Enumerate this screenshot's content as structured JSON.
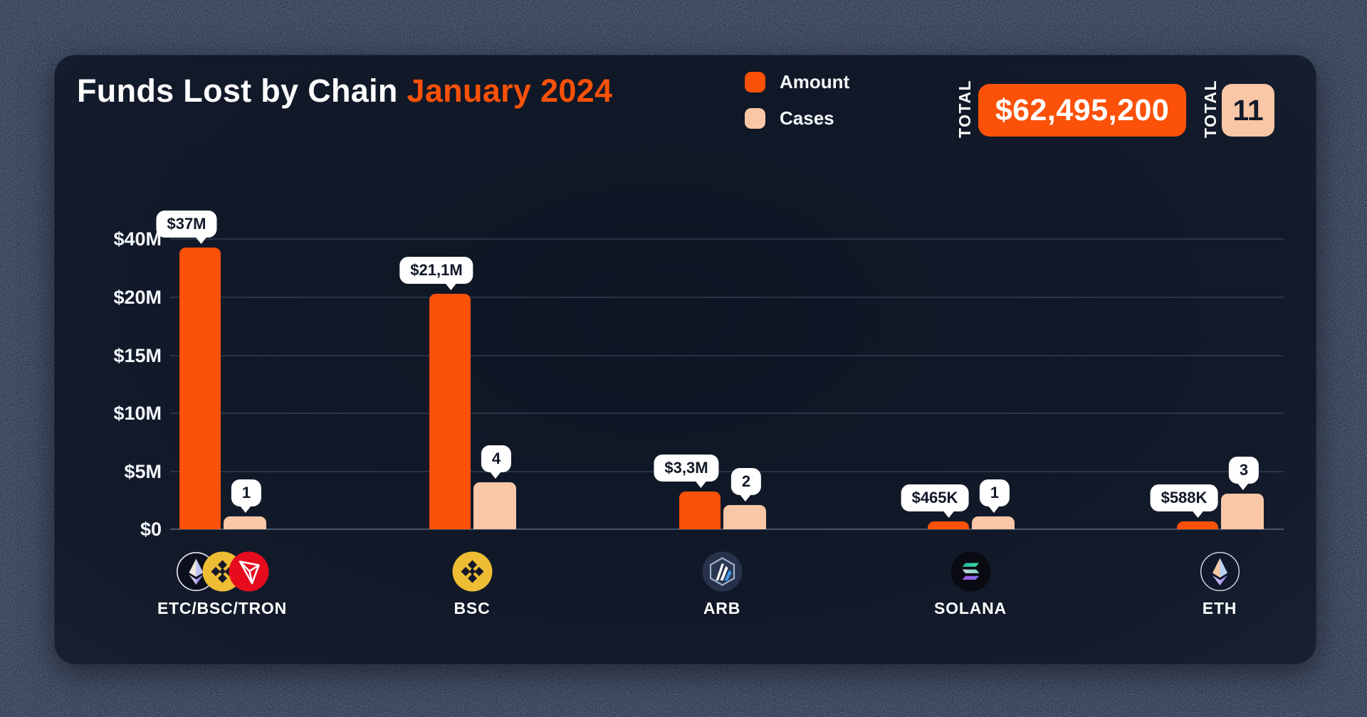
{
  "chart_data": {
    "type": "bar",
    "title": "Funds Lost by Chain",
    "title_highlight": "January 2024",
    "legend": [
      {
        "label": "Amount",
        "color": "#fb5108"
      },
      {
        "label": "Cases",
        "color": "#f9c7a6"
      }
    ],
    "totals": [
      {
        "label": "TOTAL",
        "value": "$62,495,200",
        "kind": "amount"
      },
      {
        "label": "TOTAL",
        "value": "11",
        "kind": "cases"
      }
    ],
    "y_axis": {
      "ticks": [
        "$40M",
        "$20M",
        "$15M",
        "$10M",
        "$5M",
        "$0"
      ],
      "tick_values_musd": [
        40,
        20,
        15,
        10,
        5,
        0
      ],
      "scale": "piecewise-linear (equal spacing between labeled ticks)",
      "grid": true
    },
    "series": [
      {
        "name": "Amount",
        "values_usd": [
          37000000,
          21100000,
          3300000,
          465000,
          588000
        ]
      },
      {
        "name": "Cases",
        "values": [
          1,
          4,
          2,
          1,
          3
        ]
      }
    ],
    "categories": [
      {
        "label": "ETC/BSC/TRON",
        "icons": [
          "eth-dark",
          "bnb",
          "tron"
        ],
        "amount_usd_m": 37,
        "amount_label": "$37M",
        "cases": 1
      },
      {
        "label": "BSC",
        "icons": [
          "bnb"
        ],
        "amount_usd_m": 21.1,
        "amount_label": "$21,1M",
        "cases": 4
      },
      {
        "label": "ARB",
        "icons": [
          "arb"
        ],
        "amount_usd_m": 3.3,
        "amount_label": "$3,3M",
        "cases": 2
      },
      {
        "label": "SOLANA",
        "icons": [
          "sol"
        ],
        "amount_usd_m": 0.465,
        "amount_label": "$465K",
        "cases": 1
      },
      {
        "label": "ETH",
        "icons": [
          "eth"
        ],
        "amount_usd_m": 0.588,
        "amount_label": "$588K",
        "cases": 3
      }
    ]
  }
}
